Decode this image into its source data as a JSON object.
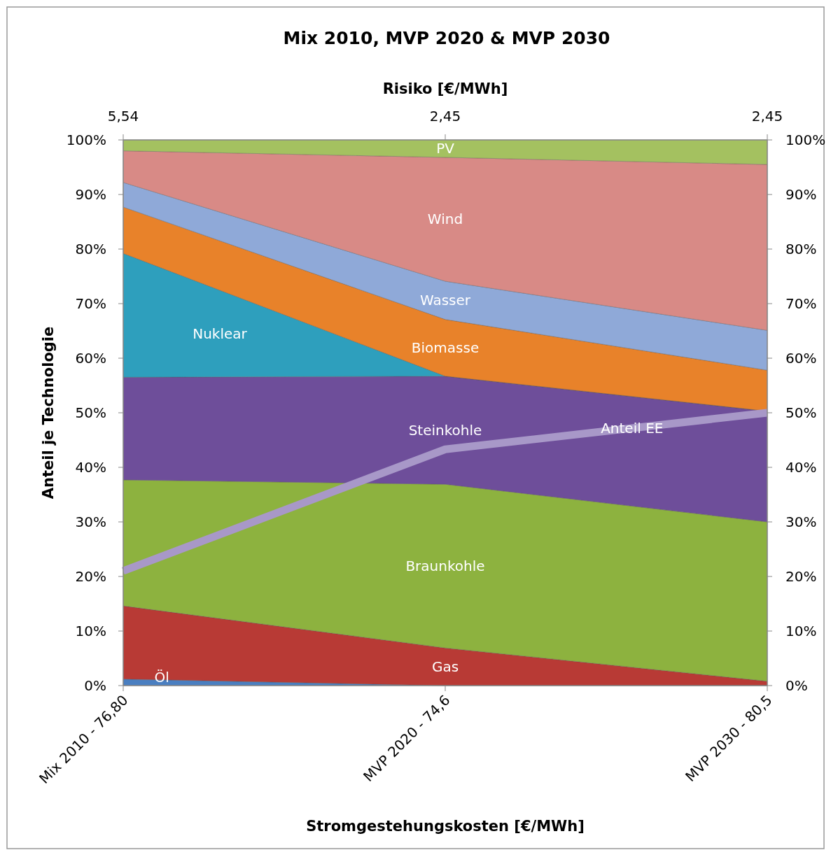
{
  "chart_data": {
    "type": "area",
    "stacked": true,
    "title": "Mix 2010, MVP 2020 & MVP 2030",
    "xlabel": "Stromgestehungskosten [€/MWh]",
    "x2label": "Risiko [€/MWh]",
    "ylabel": "Anteil je Technologie",
    "categories": [
      "Mix 2010 - 76,80",
      "MVP 2020 - 74,6",
      "MVP 2030 - 80,5"
    ],
    "annotations": [
      {
        "text": "5,54",
        "x": "Mix 2010 - 76,80"
      },
      {
        "text": "2,45",
        "x": "MVP 2020 - 74,6"
      },
      {
        "text": "2,45",
        "x": "MVP 2030 - 80,5"
      }
    ],
    "ylim": [
      0,
      100
    ],
    "yticks": [
      {
        "value": 0,
        "label": "0%"
      },
      {
        "value": 10,
        "label": "10%"
      },
      {
        "value": 20,
        "label": "20%"
      },
      {
        "value": 30,
        "label": "30%"
      },
      {
        "value": 40,
        "label": "40%"
      },
      {
        "value": 50,
        "label": "50%"
      },
      {
        "value": 60,
        "label": "60%"
      },
      {
        "value": 70,
        "label": "70%"
      },
      {
        "value": 80,
        "label": "80%"
      },
      {
        "value": 90,
        "label": "90%"
      },
      {
        "value": 100,
        "label": "100%"
      }
    ],
    "y2lim": [
      0,
      100
    ],
    "y2ticks": [
      {
        "value": 0,
        "label": "0%"
      },
      {
        "value": 10,
        "label": "10%"
      },
      {
        "value": 20,
        "label": "20%"
      },
      {
        "value": 30,
        "label": "30%"
      },
      {
        "value": 40,
        "label": "40%"
      },
      {
        "value": 50,
        "label": "50%"
      },
      {
        "value": 60,
        "label": "60%"
      },
      {
        "value": 70,
        "label": "70%"
      },
      {
        "value": 80,
        "label": "80%"
      },
      {
        "value": 90,
        "label": "90%"
      },
      {
        "value": 100,
        "label": "100%"
      }
    ],
    "grid": false,
    "series": [
      {
        "name": "Öl",
        "color": "#4a7fc1",
        "values": [
          1.2,
          0,
          0
        ]
      },
      {
        "name": "Gas",
        "color": "#b83a35",
        "values": [
          13.4,
          6.9,
          0.8
        ]
      },
      {
        "name": "Braunkohle",
        "color": "#8db23f",
        "values": [
          23.1,
          30.0,
          29.2
        ]
      },
      {
        "name": "Steinkohle",
        "color": "#6e4e9a",
        "values": [
          18.8,
          19.8,
          20.3
        ]
      },
      {
        "name": "Nuklear",
        "color": "#2e9fbd",
        "values": [
          22.7,
          0,
          0
        ]
      },
      {
        "name": "Biomasse",
        "color": "#e8822a",
        "values": [
          8.5,
          10.4,
          7.5
        ]
      },
      {
        "name": "Wasser",
        "color": "#8fa9d8",
        "values": [
          4.5,
          7.0,
          7.3
        ]
      },
      {
        "name": "Wind",
        "color": "#d88a86",
        "values": [
          5.8,
          22.7,
          30.4
        ]
      },
      {
        "name": "PV",
        "color": "#a4c160",
        "values": [
          2.0,
          3.2,
          4.5
        ]
      },
      {
        "name": "Anteil EE",
        "type": "line",
        "color": "#a898c8",
        "values": [
          21.0,
          43.3,
          50.0
        ]
      }
    ]
  }
}
